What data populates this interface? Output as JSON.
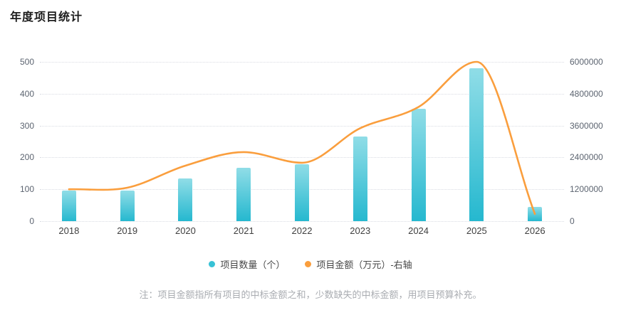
{
  "title": "年度项目统计",
  "legend": {
    "items": [
      {
        "label": "项目数量（个）",
        "color": "#38c2d6",
        "series": "count"
      },
      {
        "label": "项目金额（万元）-右轴",
        "color": "#fa9e3d",
        "series": "amount"
      }
    ]
  },
  "footnote": "注：项目金额指所有项目的中标金额之和，少数缺失的中标金额，用项目预算补充。",
  "colors": {
    "bar_gradient_top": "#90dde7",
    "bar_gradient_bottom": "#25b8cf",
    "line": "#fa9e3d",
    "grid": "#d9dce3",
    "axis_text": "#5c6470",
    "x_axis_text": "#404040",
    "title_text": "#1c1c1c",
    "footnote_text": "#a9acb1"
  },
  "chart_data": {
    "type": "bar",
    "title": "年度项目统计",
    "categories": [
      "2018",
      "2019",
      "2020",
      "2021",
      "2022",
      "2023",
      "2024",
      "2025",
      "2026"
    ],
    "series": [
      {
        "name": "项目数量（个）",
        "type": "bar",
        "axis": "left",
        "values": [
          97,
          95,
          134,
          168,
          178,
          266,
          352,
          480,
          45
        ]
      },
      {
        "name": "项目金额（万元）-右轴",
        "type": "line",
        "axis": "right",
        "values": [
          1200000,
          1260000,
          2090000,
          2600000,
          2200000,
          3500000,
          4300000,
          6000000,
          270000
        ]
      }
    ],
    "left_axis": {
      "label": "",
      "min": 0,
      "max": 500,
      "ticks": [
        0,
        100,
        200,
        300,
        400,
        500
      ]
    },
    "right_axis": {
      "label": "",
      "min": 0,
      "max": 6000000,
      "ticks": [
        0,
        1200000,
        2400000,
        3600000,
        4800000,
        6000000
      ]
    },
    "grid": "horizontal-dotted",
    "legend_position": "bottom",
    "smooth_line": true
  }
}
